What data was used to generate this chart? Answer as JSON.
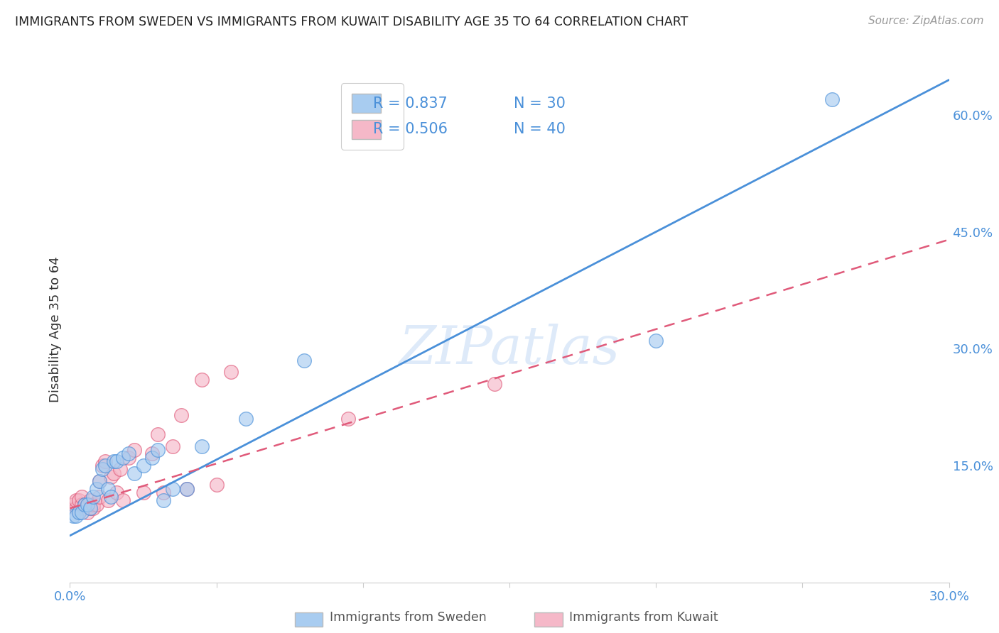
{
  "title": "IMMIGRANTS FROM SWEDEN VS IMMIGRANTS FROM KUWAIT DISABILITY AGE 35 TO 64 CORRELATION CHART",
  "source": "Source: ZipAtlas.com",
  "ylabel": "Disability Age 35 to 64",
  "xlim": [
    0.0,
    0.3
  ],
  "ylim": [
    0.0,
    0.65
  ],
  "xticks": [
    0.0,
    0.05,
    0.1,
    0.15,
    0.2,
    0.25,
    0.3
  ],
  "yticks_right": [
    0.15,
    0.3,
    0.45,
    0.6
  ],
  "ytick_labels_right": [
    "15.0%",
    "30.0%",
    "45.0%",
    "60.0%"
  ],
  "legend_r_sweden": "R = 0.837",
  "legend_n_sweden": "N = 30",
  "legend_r_kuwait": "R = 0.506",
  "legend_n_kuwait": "N = 40",
  "color_sweden": "#A8CCF0",
  "color_kuwait": "#F5B8C8",
  "line_color_sweden": "#4A90D9",
  "line_color_kuwait": "#E05A7A",
  "watermark": "ZIPatlas",
  "sweden_scatter_x": [
    0.001,
    0.002,
    0.003,
    0.004,
    0.005,
    0.006,
    0.007,
    0.008,
    0.009,
    0.01,
    0.011,
    0.012,
    0.013,
    0.014,
    0.015,
    0.016,
    0.018,
    0.02,
    0.022,
    0.025,
    0.028,
    0.03,
    0.032,
    0.035,
    0.04,
    0.045,
    0.06,
    0.08,
    0.2,
    0.26
  ],
  "sweden_scatter_y": [
    0.085,
    0.085,
    0.09,
    0.09,
    0.1,
    0.1,
    0.095,
    0.11,
    0.12,
    0.13,
    0.145,
    0.15,
    0.12,
    0.11,
    0.155,
    0.155,
    0.16,
    0.165,
    0.14,
    0.15,
    0.16,
    0.17,
    0.105,
    0.12,
    0.12,
    0.175,
    0.21,
    0.285,
    0.31,
    0.62
  ],
  "kuwait_scatter_x": [
    0.001,
    0.002,
    0.002,
    0.003,
    0.003,
    0.004,
    0.004,
    0.005,
    0.005,
    0.006,
    0.006,
    0.007,
    0.007,
    0.008,
    0.008,
    0.009,
    0.01,
    0.01,
    0.011,
    0.012,
    0.013,
    0.014,
    0.015,
    0.016,
    0.017,
    0.018,
    0.02,
    0.022,
    0.025,
    0.028,
    0.03,
    0.032,
    0.035,
    0.038,
    0.04,
    0.045,
    0.05,
    0.055,
    0.095,
    0.145
  ],
  "kuwait_scatter_y": [
    0.1,
    0.095,
    0.105,
    0.09,
    0.105,
    0.1,
    0.11,
    0.095,
    0.1,
    0.09,
    0.1,
    0.095,
    0.105,
    0.095,
    0.1,
    0.1,
    0.13,
    0.11,
    0.15,
    0.155,
    0.105,
    0.135,
    0.14,
    0.115,
    0.145,
    0.105,
    0.16,
    0.17,
    0.115,
    0.165,
    0.19,
    0.115,
    0.175,
    0.215,
    0.12,
    0.26,
    0.125,
    0.27,
    0.21,
    0.255
  ],
  "sweden_line_x": [
    0.0,
    0.3
  ],
  "sweden_line_y": [
    0.06,
    0.645
  ],
  "kuwait_line_x": [
    0.0,
    0.3
  ],
  "kuwait_line_y": [
    0.095,
    0.44
  ],
  "grid_color": "#E0E0E0",
  "background_color": "#FFFFFF",
  "text_color_blue": "#4A90D9",
  "text_color_dark": "#333333"
}
